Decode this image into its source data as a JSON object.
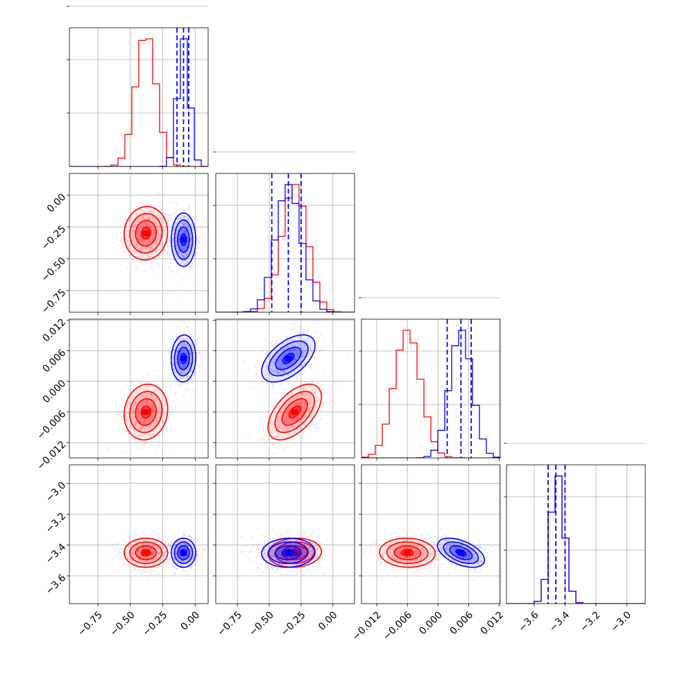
{
  "colors": {
    "red": "#ff0000",
    "blue": "#0000ff",
    "grid": "#b0b0b0"
  },
  "chart_data": {
    "type": "corner",
    "title": "",
    "parameters": [
      {
        "range": [
          -0.97,
          0.1
        ],
        "ticks": [
          -0.75,
          -0.5,
          -0.25,
          0.0
        ],
        "tick_labels": [
          "−0.75",
          "−0.50",
          "−0.25",
          "0.00"
        ]
      },
      {
        "range": [
          -0.92,
          0.17
        ],
        "ticks": [
          -0.75,
          -0.5,
          -0.25,
          0.0
        ],
        "tick_labels": [
          "−0.75",
          "−0.50",
          "−0.25",
          "0.00"
        ]
      },
      {
        "range": [
          -0.015,
          0.0122
        ],
        "ticks": [
          -0.012,
          -0.006,
          0.0,
          0.006,
          0.012
        ],
        "tick_labels": [
          "−0.012",
          "−0.006",
          "0.000",
          "0.006",
          "0.012"
        ]
      },
      {
        "range": [
          -3.78,
          -2.88
        ],
        "ticks": [
          -3.6,
          -3.4,
          -3.2,
          -3.0
        ],
        "tick_labels": [
          "−3.6",
          "−3.4",
          "−3.2",
          "−3.0"
        ]
      }
    ],
    "series": [
      {
        "color": "#ff0000",
        "means": [
          -0.38,
          -0.3,
          -0.006,
          -3.45
        ],
        "stds": [
          0.08,
          0.1,
          0.0026,
          0.045
        ],
        "corr": {
          "1-0": 0.05,
          "2-0": 0.1,
          "2-1": 0.55,
          "3-0": 0.0,
          "3-1": 0.08,
          "3-2": -0.05
        },
        "quantiles": []
      },
      {
        "color": "#0000ff",
        "means": [
          -0.09,
          -0.35,
          0.0045,
          -3.45
        ],
        "stds": [
          0.045,
          0.1,
          0.0022,
          0.045
        ],
        "corr": {
          "1-0": 0.0,
          "2-0": 0.05,
          "2-1": 0.55,
          "3-0": 0.0,
          "3-1": 0.05,
          "3-2": -0.5
        },
        "quantiles": [
          [
            -0.14,
            -0.09,
            -0.05
          ],
          [
            -0.48,
            -0.35,
            -0.25
          ],
          [
            0.0018,
            0.0045,
            0.0065
          ],
          [
            -3.51,
            -3.46,
            -3.4
          ]
        ]
      }
    ],
    "grid": true
  }
}
